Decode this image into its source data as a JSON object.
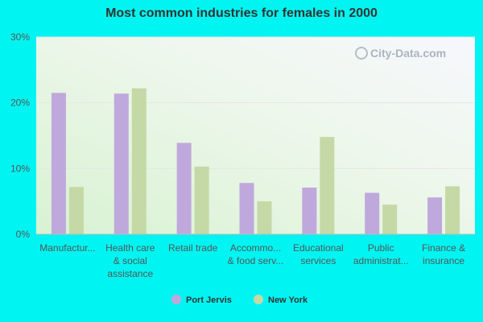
{
  "chart_data": {
    "type": "bar",
    "title": "Most common industries for females in 2000",
    "categories": [
      [
        "Manufactur..."
      ],
      [
        "Health care",
        "& social",
        "assistance"
      ],
      [
        "Retail trade"
      ],
      [
        "Accommo...",
        "& food serv..."
      ],
      [
        "Educational",
        "services"
      ],
      [
        "Public",
        "administrat..."
      ],
      [
        "Finance &",
        "insurance"
      ]
    ],
    "series": [
      {
        "name": "Port Jervis",
        "color": "#bfa8dc",
        "values": [
          21.5,
          21.4,
          13.9,
          7.8,
          7.1,
          6.3,
          5.6
        ]
      },
      {
        "name": "New York",
        "color": "#c4d9a6",
        "values": [
          7.2,
          22.2,
          10.3,
          5.0,
          14.8,
          4.5,
          7.3
        ]
      }
    ],
    "ylim": [
      0,
      30
    ],
    "yticks": [
      "0%",
      "10%",
      "20%",
      "30%"
    ],
    "ytick_values": [
      0,
      10,
      20,
      30
    ],
    "grid": true,
    "legend": "bottom-center",
    "watermark": "City-Data.com"
  }
}
